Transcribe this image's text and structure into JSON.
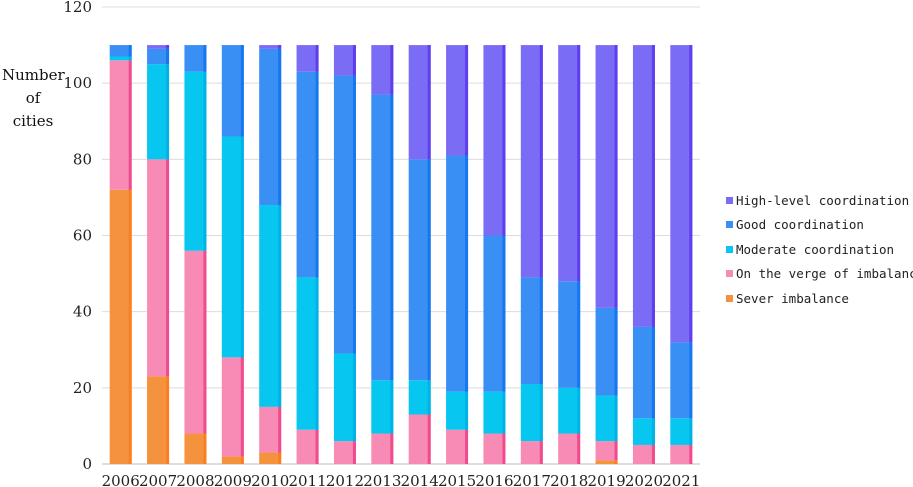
{
  "chart_data": {
    "type": "bar",
    "stacked": true,
    "ylabel": [
      "Number",
      "of",
      "cities"
    ],
    "ylim": [
      0,
      120
    ],
    "yticks": [
      0,
      20,
      40,
      60,
      80,
      100,
      120
    ],
    "grid": "horizontal",
    "legend_position": "right",
    "categories": [
      "2006",
      "2007",
      "2008",
      "2009",
      "2010",
      "2011",
      "2012",
      "2013",
      "2014",
      "2015",
      "2016",
      "2017",
      "2018",
      "2019",
      "2020",
      "2021"
    ],
    "series": [
      {
        "name": "Sever imbalance",
        "color": "#f5923e",
        "edge": "#fa7f22",
        "values": [
          72,
          23,
          8,
          2,
          3,
          0,
          0,
          0,
          0,
          0,
          0,
          0,
          0,
          1,
          0,
          0
        ]
      },
      {
        "name": "On the verge of imbalance",
        "color": "#f78bb6",
        "edge": "#f04b8c",
        "values": [
          34,
          57,
          48,
          26,
          12,
          9,
          6,
          8,
          13,
          9,
          8,
          6,
          8,
          5,
          5,
          5
        ]
      },
      {
        "name": "Moderate coordination",
        "color": "#07c6ef",
        "edge": "#00b3e6",
        "values": [
          1,
          25,
          47,
          58,
          53,
          40,
          23,
          14,
          9,
          10,
          11,
          15,
          12,
          12,
          7,
          7
        ]
      },
      {
        "name": "Good coordination",
        "color": "#3a8ff5",
        "edge": "#1677f0",
        "values": [
          3,
          4,
          7,
          24,
          41,
          54,
          73,
          75,
          58,
          62,
          41,
          28,
          28,
          23,
          24,
          20
        ]
      },
      {
        "name": "High-level coordination",
        "color": "#7b6cf6",
        "edge": "#5d3ff0",
        "values": [
          0,
          1,
          0,
          0,
          1,
          7,
          8,
          13,
          30,
          29,
          50,
          61,
          62,
          69,
          74,
          78
        ]
      }
    ]
  }
}
